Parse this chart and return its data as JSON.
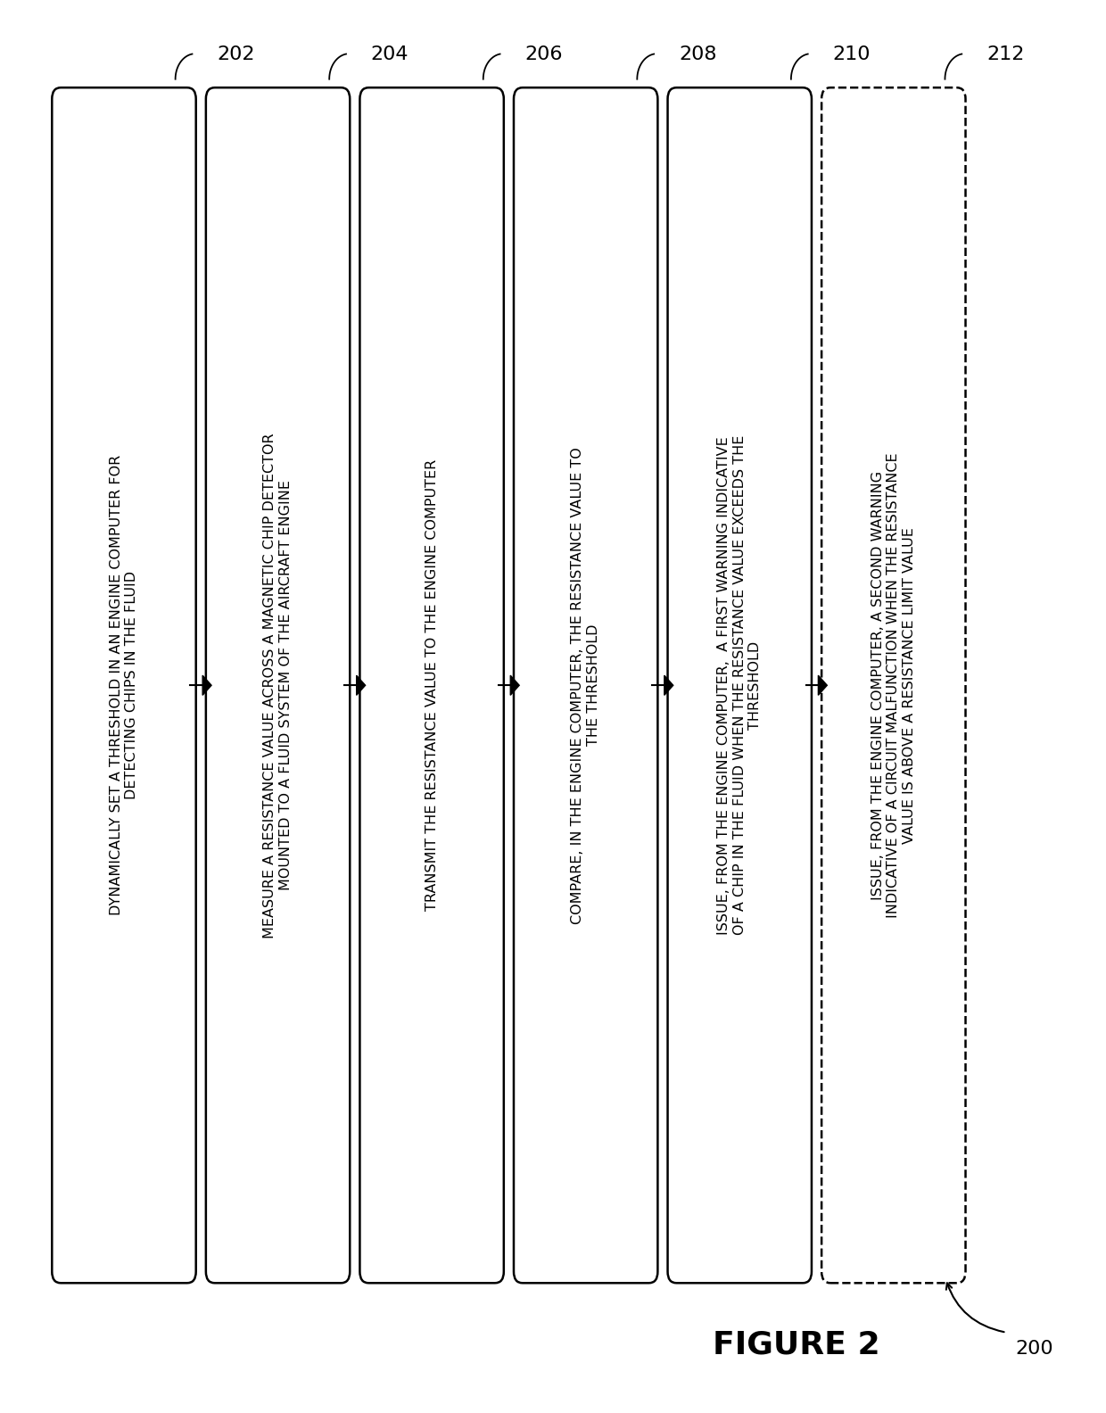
{
  "figure_width": 12.4,
  "figure_height": 15.84,
  "background_color": "#ffffff",
  "title": "FIGURE 2",
  "title_fontsize": 26,
  "outer_label": "200",
  "box_color": "#000000",
  "box_fill": "#ffffff",
  "text_color": "#000000",
  "label_color": "#000000",
  "ref_fontsize": 16,
  "text_fontsize": 11.5,
  "arrow_color": "#000000",
  "boxes": [
    {
      "ref": "202",
      "text": "DYNAMICALLY SET A THRESHOLD IN AN ENGINE COMPUTER FOR\nDETECTING CHIPS IN THE FLUID",
      "dashed": false
    },
    {
      "ref": "204",
      "text": "MEASURE A RESISTANCE VALUE ACROSS A MAGNETIC CHIP DETECTOR\nMOUNTED TO A FLUID SYSTEM OF THE AIRCRAFT ENGINE",
      "dashed": false
    },
    {
      "ref": "206",
      "text": "TRANSMIT THE RESISTANCE VALUE TO THE ENGINE COMPUTER",
      "dashed": false
    },
    {
      "ref": "208",
      "text": "COMPARE, IN THE ENGINE COMPUTER, THE RESISTANCE VALUE TO\nTHE THRESHOLD",
      "dashed": false
    },
    {
      "ref": "210",
      "text": "ISSUE, FROM THE ENGINE COMPUTER,  A FIRST WARNING INDICATIVE\nOF A CHIP IN THE FLUID WHEN THE RESISTANCE VALUE EXCEEDS THE\nTHRESHOLD",
      "dashed": false
    },
    {
      "ref": "212",
      "text": "ISSUE, FROM THE ENGINE COMPUTER, A SECOND WARNING\nINDICATIVE OF A CIRCUIT MALFUNCTION WHEN THE RESISTANCE\nVALUE IS ABOVE A RESISTANCE LIMIT VALUE",
      "dashed": true
    }
  ]
}
